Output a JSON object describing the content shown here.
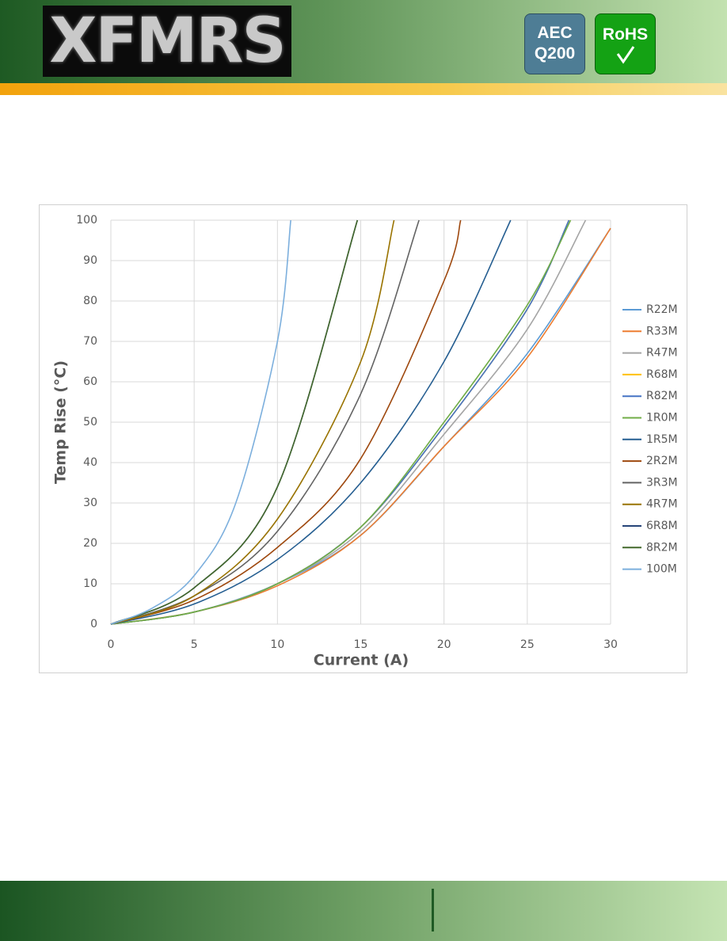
{
  "header": {
    "logo": "XFMRS",
    "badges": [
      {
        "lines": [
          "AEC",
          "Q200"
        ]
      },
      {
        "lines": [
          "RoHS"
        ]
      }
    ]
  },
  "chart_data": {
    "type": "line",
    "x_label": "Current (A)",
    "y_label": "Temp Rise (°C)",
    "xlim": [
      0,
      30
    ],
    "xticks": [
      0,
      5,
      10,
      15,
      20,
      25,
      30
    ],
    "ylim": [
      0,
      100
    ],
    "yticks": [
      0,
      10,
      20,
      30,
      40,
      50,
      60,
      70,
      80,
      90,
      100
    ],
    "grid": true,
    "legend": "right",
    "series": [
      {
        "name": "R22M",
        "color": "#5b9bd5",
        "x": [
          0,
          5,
          10,
          15,
          20,
          25,
          30
        ],
        "values": [
          0,
          3,
          10,
          22,
          44,
          67,
          98
        ]
      },
      {
        "name": "R33M",
        "color": "#ed7d31",
        "x": [
          0,
          5,
          10,
          15,
          20,
          25,
          30
        ],
        "values": [
          0,
          3,
          9.5,
          22,
          44,
          66,
          98
        ]
      },
      {
        "name": "R47M",
        "color": "#a5a5a5",
        "x": [
          0,
          5,
          10,
          15,
          20,
          25,
          28.5
        ],
        "values": [
          0,
          3,
          10,
          23,
          47,
          73,
          100
        ]
      },
      {
        "name": "R68M",
        "color": "#ffc000",
        "x": [
          0,
          5,
          10,
          15,
          20,
          25,
          27.5
        ],
        "values": [
          0,
          3,
          10,
          24,
          49,
          78,
          100
        ]
      },
      {
        "name": "R82M",
        "color": "#4472c4",
        "x": [
          0,
          5,
          10,
          15,
          20,
          25,
          27.5
        ],
        "values": [
          0,
          3,
          10,
          24,
          49,
          78,
          100
        ]
      },
      {
        "name": "1R0M",
        "color": "#70ad47",
        "x": [
          0,
          5,
          10,
          15,
          20,
          25,
          27.6
        ],
        "values": [
          0,
          3,
          10,
          24,
          50,
          79,
          100
        ]
      },
      {
        "name": "1R5M",
        "color": "#255e91",
        "x": [
          0,
          5,
          10,
          15,
          20,
          24
        ],
        "values": [
          0,
          5,
          16,
          35,
          65,
          100
        ]
      },
      {
        "name": "2R2M",
        "color": "#9e480e",
        "x": [
          0,
          5,
          10,
          15,
          20,
          21
        ],
        "values": [
          0,
          6,
          19,
          41,
          85,
          100
        ]
      },
      {
        "name": "3R3M",
        "color": "#636363",
        "x": [
          0,
          5,
          10,
          15,
          18.5
        ],
        "values": [
          0,
          7,
          23,
          57,
          100
        ]
      },
      {
        "name": "4R7M",
        "color": "#997300",
        "x": [
          0,
          5,
          10,
          15,
          17
        ],
        "values": [
          0,
          7,
          26,
          65,
          100
        ]
      },
      {
        "name": "6R8M",
        "color": "#264478",
        "x": [
          0,
          5,
          10,
          14.8
        ],
        "values": [
          0,
          9,
          34,
          100
        ]
      },
      {
        "name": "8R2M",
        "color": "#43682b",
        "x": [
          0,
          5,
          10,
          14.8
        ],
        "values": [
          0,
          9,
          34,
          100
        ]
      },
      {
        "name": "100M",
        "color": "#7cafdd",
        "x": [
          0,
          2.5,
          5,
          7.5,
          10,
          10.8
        ],
        "values": [
          0,
          4,
          12,
          30,
          70,
          100
        ]
      }
    ]
  }
}
